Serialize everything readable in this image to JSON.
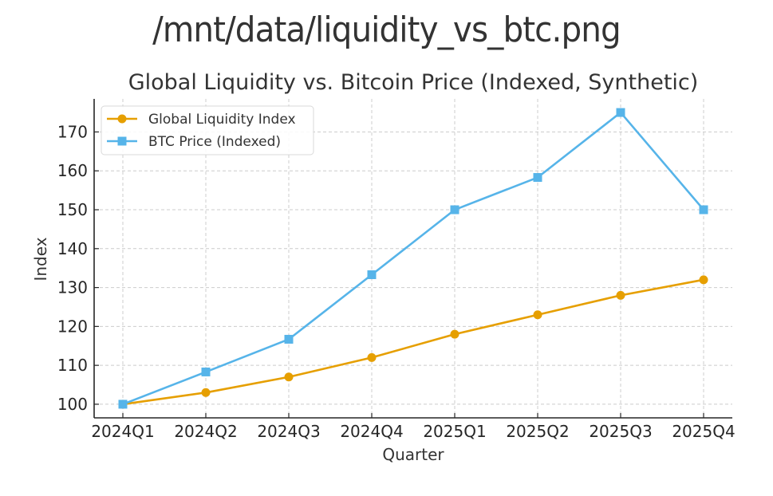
{
  "figure": {
    "filename_title": "/mnt/data/liquidity_vs_btc.png"
  },
  "chart_data": {
    "type": "line",
    "title": "Global Liquidity vs. Bitcoin Price (Indexed, Synthetic)",
    "xlabel": "Quarter",
    "ylabel": "Index",
    "categories": [
      "2024Q1",
      "2024Q2",
      "2024Q3",
      "2024Q4",
      "2025Q1",
      "2025Q2",
      "2025Q3",
      "2025Q4"
    ],
    "yticks": [
      100,
      110,
      120,
      130,
      140,
      150,
      160,
      170
    ],
    "ylim": [
      96.5,
      178.5
    ],
    "grid": true,
    "legend_position": "top-left",
    "series": [
      {
        "name": "Global Liquidity Index",
        "color": "#E69F00",
        "marker": "circle",
        "values": [
          100,
          103,
          107,
          112,
          118,
          123,
          128,
          132
        ]
      },
      {
        "name": "BTC Price (Indexed)",
        "color": "#56B4E9",
        "marker": "square",
        "values": [
          100,
          108.3,
          116.7,
          133.3,
          150,
          158.3,
          175,
          150
        ]
      }
    ]
  }
}
